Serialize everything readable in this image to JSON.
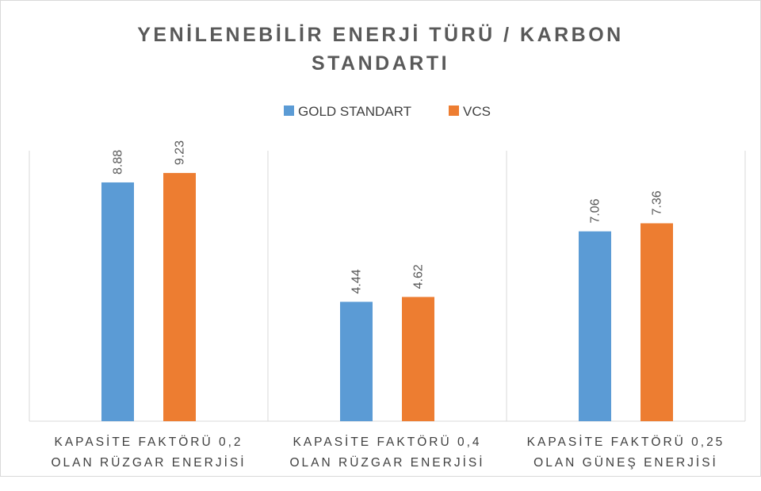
{
  "chart_data": {
    "type": "bar",
    "title": "YENİLENEBİLİR ENERJİ TÜRÜ / KARBON\nSTANDARTI",
    "categories": [
      "KAPASİTE FAKTÖRÜ 0,2\nOLAN RÜZGAR ENERJİSİ",
      "KAPASİTE FAKTÖRÜ 0,4\nOLAN RÜZGAR ENERJİSİ",
      "KAPASİTE FAKTÖRÜ 0,25\nOLAN GÜNEŞ ENERJİSİ"
    ],
    "series": [
      {
        "name": "GOLD STANDART",
        "color": "#5b9bd5",
        "values": [
          8.88,
          4.44,
          7.06
        ]
      },
      {
        "name": "VCS",
        "color": "#ed7d31",
        "values": [
          9.23,
          4.62,
          7.36
        ]
      }
    ],
    "ylim": [
      0,
      10
    ],
    "legend": "top"
  }
}
